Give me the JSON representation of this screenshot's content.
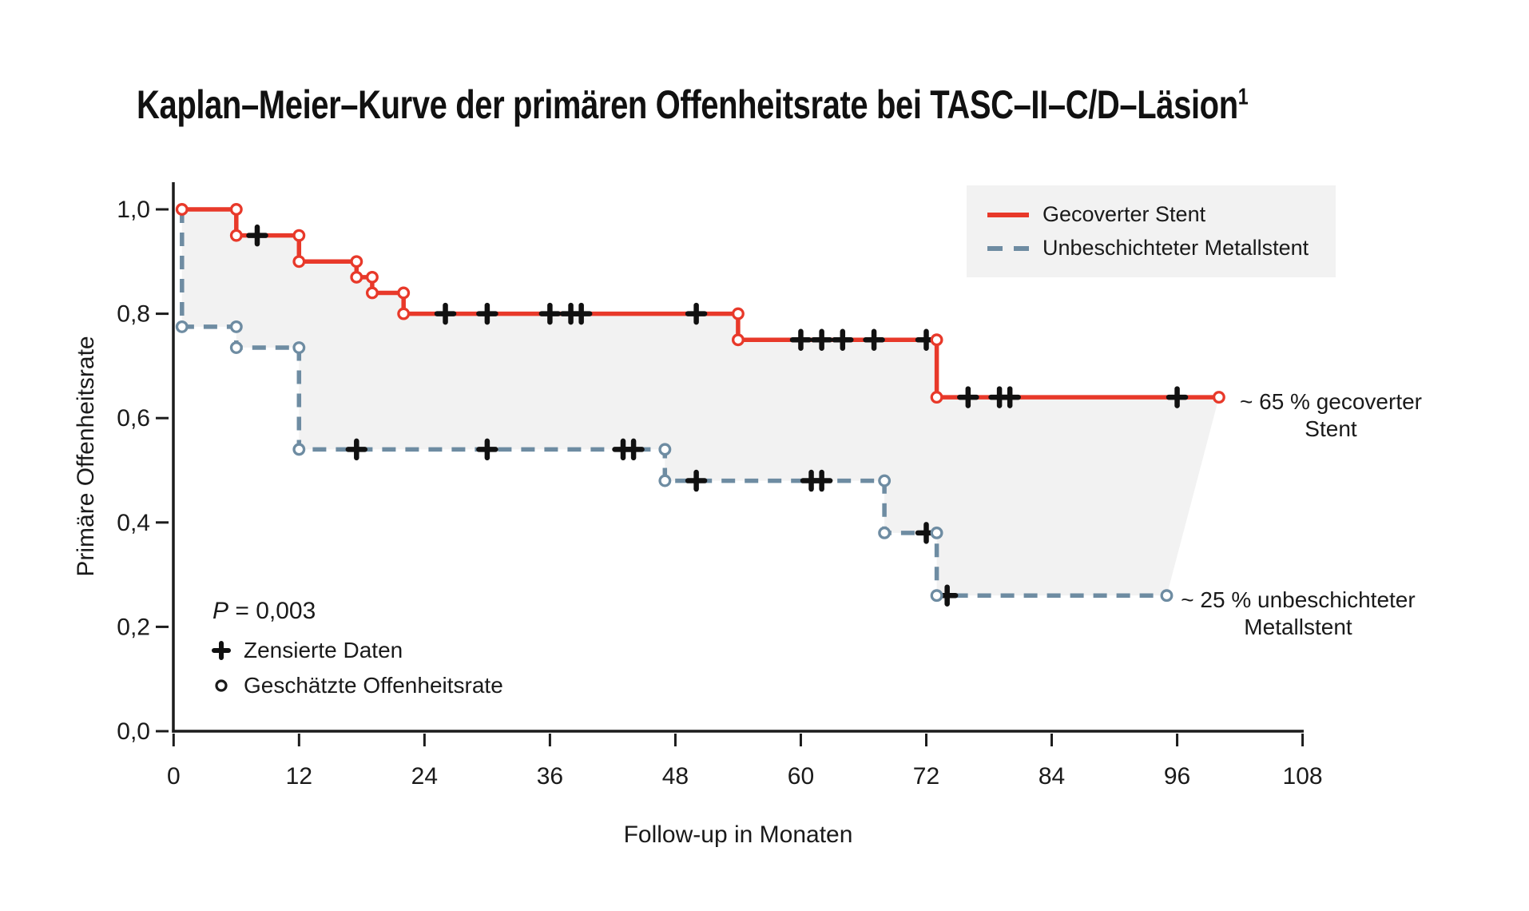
{
  "title": {
    "text": "Kaplan–Meier–Kurve der primären Offenheitsrate bei TASC–II–C/D–Läsion",
    "superscript": "1"
  },
  "axes": {
    "x": {
      "title": "Follow-up in Monaten"
    },
    "y": {
      "title": "Primäre Offenheitsrate"
    }
  },
  "legend": {
    "items": [
      {
        "label": "Gecoverter Stent",
        "style": "solid",
        "color": "#e8392a"
      },
      {
        "label": "Unbeschichteter Metallstent",
        "style": "dashed",
        "color": "#6e8ca2"
      }
    ]
  },
  "stats": {
    "p_symbol": "P",
    "p_rest": " = 0,003"
  },
  "keys": {
    "censored": {
      "symbol": "plus",
      "label": "Zensierte Daten"
    },
    "estimated": {
      "symbol": "circle",
      "label": "Geschätzte Offenheitsrate"
    }
  },
  "annotations": {
    "covered": {
      "line1": "~ 65 % gecoverter",
      "line2": "Stent"
    },
    "bare": {
      "line1": "~ 25 % unbeschichteter",
      "line2": "Metallstent"
    }
  },
  "colors": {
    "red": "#e8392a",
    "blue": "#6e8ca2",
    "band": "#f2f2f2",
    "legend_bg": "#f2f2f2",
    "censor": "#111111",
    "axis": "#1c1c1c",
    "text": "#1a1a1a"
  },
  "chart_data": {
    "type": "line",
    "subtype": "kaplan-meier-step",
    "title": "Kaplan–Meier–Kurve der primären Offenheitsrate bei TASC-II-C/D-Läsion",
    "xlabel": "Follow-up in Monaten",
    "ylabel": "Primäre Offenheitsrate",
    "xlim": [
      0,
      108
    ],
    "ylim": [
      0.0,
      1.0
    ],
    "x_ticks": [
      0,
      12,
      24,
      36,
      48,
      60,
      72,
      84,
      96,
      108
    ],
    "y_ticks": [
      {
        "value": 1.0,
        "label": "1,0"
      },
      {
        "value": 0.8,
        "label": "0,8"
      },
      {
        "value": 0.6,
        "label": "0,6"
      },
      {
        "value": 0.4,
        "label": "0,4"
      },
      {
        "value": 0.2,
        "label": "0,2"
      },
      {
        "value": 0.0,
        "label": "0,0"
      }
    ],
    "grid": false,
    "legend_position": "upper right",
    "p_value": "P = 0,003",
    "band_fill": "#f2f2f2",
    "series": [
      {
        "name": "Gecoverter Stent",
        "color": "#e8392a",
        "line": "solid",
        "final_estimate_pct": 65,
        "steps": [
          [
            0.8,
            1.0
          ],
          [
            6,
            1.0
          ],
          [
            6,
            0.95
          ],
          [
            12,
            0.95
          ],
          [
            12,
            0.9
          ],
          [
            17.5,
            0.9
          ],
          [
            17.5,
            0.87
          ],
          [
            19,
            0.87
          ],
          [
            19,
            0.84
          ],
          [
            22,
            0.84
          ],
          [
            22,
            0.8
          ],
          [
            54,
            0.8
          ],
          [
            54,
            0.75
          ],
          [
            73,
            0.75
          ],
          [
            73,
            0.64
          ],
          [
            100,
            0.64
          ]
        ],
        "censored": [
          [
            8,
            0.95
          ],
          [
            26,
            0.8
          ],
          [
            30,
            0.8
          ],
          [
            36,
            0.8
          ],
          [
            38,
            0.8
          ],
          [
            39,
            0.8
          ],
          [
            50,
            0.8
          ],
          [
            60,
            0.75
          ],
          [
            62,
            0.75
          ],
          [
            64,
            0.75
          ],
          [
            67,
            0.75
          ],
          [
            72,
            0.75
          ],
          [
            76,
            0.64
          ],
          [
            79,
            0.64
          ],
          [
            80,
            0.64
          ],
          [
            96,
            0.64
          ]
        ]
      },
      {
        "name": "Unbeschichteter Metallstent",
        "color": "#6e8ca2",
        "line": "dashed",
        "final_estimate_pct": 25,
        "marker_skip_first": true,
        "steps": [
          [
            0.8,
            1.0
          ],
          [
            0.8,
            0.775
          ],
          [
            6,
            0.775
          ],
          [
            6,
            0.735
          ],
          [
            12,
            0.735
          ],
          [
            12,
            0.54
          ],
          [
            47,
            0.54
          ],
          [
            47,
            0.48
          ],
          [
            68,
            0.48
          ],
          [
            68,
            0.38
          ],
          [
            73,
            0.38
          ],
          [
            73,
            0.26
          ],
          [
            95,
            0.26
          ]
        ],
        "censored": [
          [
            17.5,
            0.54
          ],
          [
            30,
            0.54
          ],
          [
            43,
            0.54
          ],
          [
            44,
            0.54
          ],
          [
            50,
            0.48
          ],
          [
            61,
            0.48
          ],
          [
            62,
            0.48
          ],
          [
            72,
            0.38
          ],
          [
            74,
            0.26
          ]
        ]
      }
    ]
  }
}
